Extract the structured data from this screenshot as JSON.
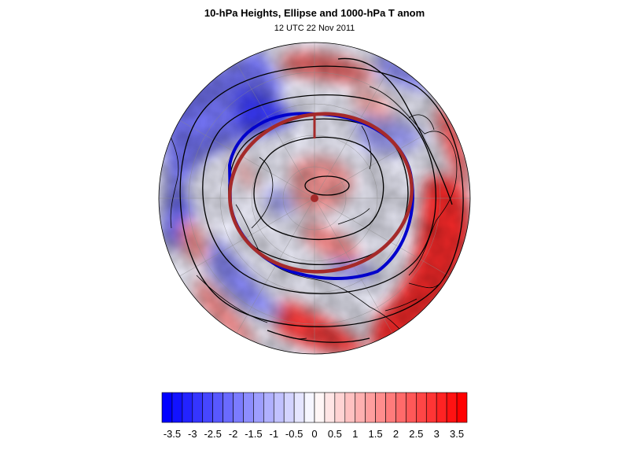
{
  "header": {
    "title": "10-hPa Heights, Ellipse and 1000-hPa T anom",
    "subtitle": "12 UTC 22 Nov 2011"
  },
  "colorbar": {
    "min": -3.75,
    "max": 3.75,
    "step": 0.25,
    "negative_color": "#0000ff",
    "positive_color": "#ff0000",
    "tick_labels": [
      "-3.5",
      "-3",
      "-2.5",
      "-2",
      "-1.5",
      "-1",
      "-0.5",
      "0",
      "0.5",
      "1",
      "1.5",
      "2",
      "2.5",
      "3",
      "3.5"
    ]
  },
  "map": {
    "projection": "north-polar-orthographic",
    "ellipse_color": "#a52a2a",
    "fitted_contour_color": "#0000cc",
    "contour_color": "#000000"
  }
}
